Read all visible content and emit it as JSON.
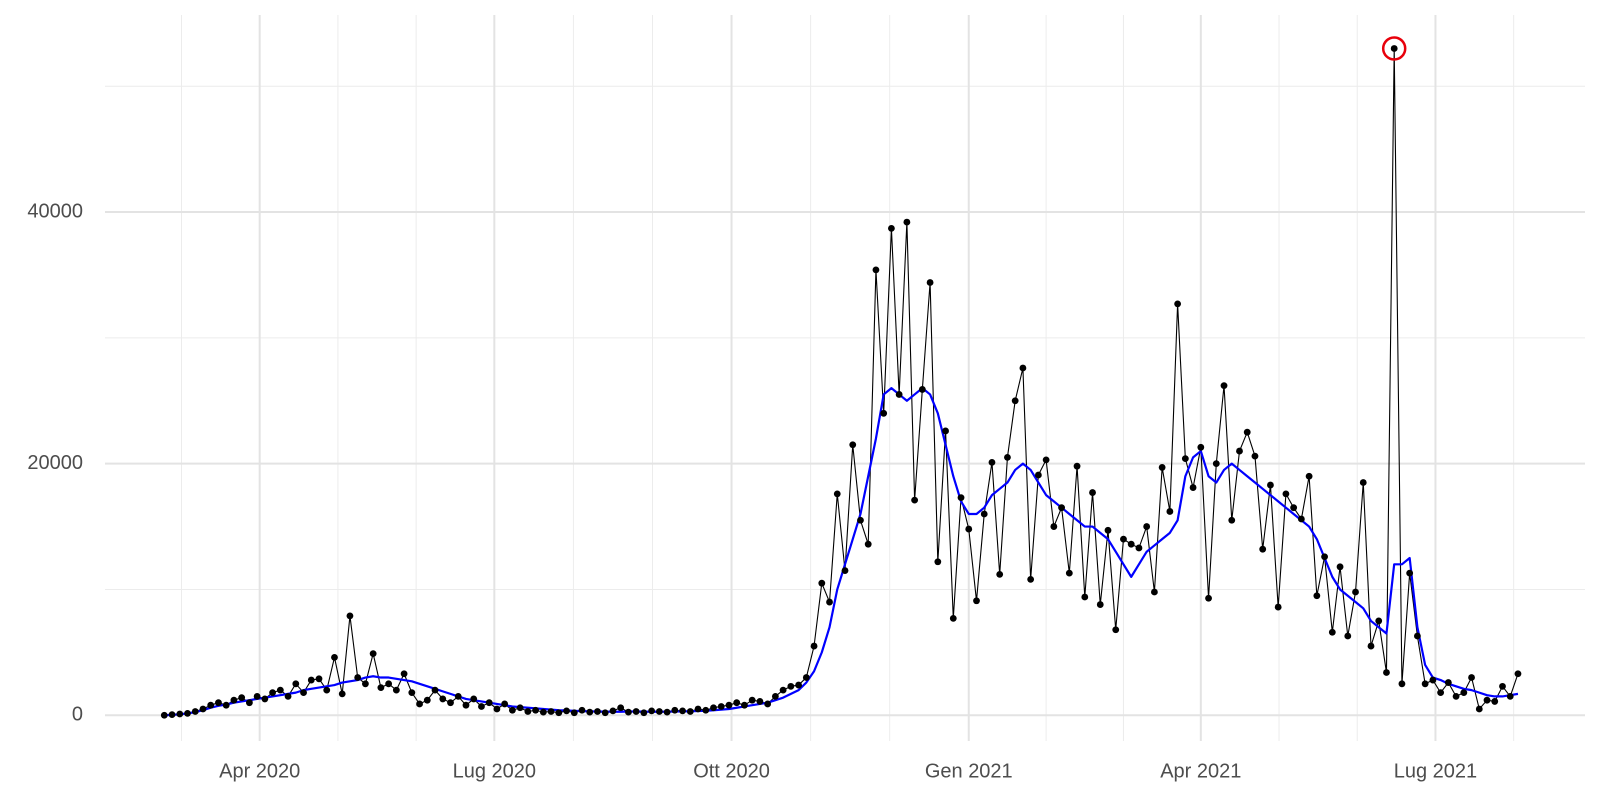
{
  "chart_data": {
    "type": "line",
    "x": [
      54,
      57,
      60,
      63,
      66,
      69,
      72,
      75,
      78,
      81,
      84,
      87,
      90,
      93,
      96,
      99,
      102,
      105,
      108,
      111,
      114,
      117,
      120,
      123,
      126,
      129,
      132,
      135,
      138,
      141,
      144,
      147,
      150,
      153,
      156,
      159,
      162,
      165,
      168,
      171,
      174,
      177,
      180,
      183,
      186,
      189,
      192,
      195,
      198,
      201,
      204,
      207,
      210,
      213,
      216,
      219,
      222,
      225,
      228,
      231,
      234,
      237,
      240,
      243,
      246,
      249,
      252,
      255,
      258,
      261,
      264,
      267,
      270,
      273,
      276,
      279,
      282,
      285,
      288,
      291,
      294,
      297,
      300,
      303,
      306,
      309,
      312,
      315,
      318,
      321,
      324,
      327,
      330,
      333,
      336,
      339,
      342,
      345,
      348,
      351,
      354,
      357,
      360,
      363,
      366,
      369,
      372,
      375,
      378,
      381,
      384,
      387,
      390,
      393,
      396,
      399,
      402,
      405,
      408,
      411,
      414,
      417,
      420,
      423,
      426,
      429,
      432,
      435,
      438,
      441,
      444,
      447,
      450,
      453,
      456,
      459,
      462,
      465,
      468,
      471,
      474,
      477,
      480,
      483,
      486,
      489,
      492,
      495,
      498,
      501,
      504,
      507,
      510,
      513,
      516,
      519,
      522,
      525,
      528,
      531,
      534,
      537,
      540,
      543,
      546,
      549,
      552,
      555,
      558,
      561,
      564,
      567,
      570,
      573,
      576,
      579
    ],
    "series": [
      {
        "color": "#000000",
        "markers": true,
        "values": [
          0,
          50,
          100,
          150,
          300,
          500,
          800,
          1000,
          800,
          1200,
          1400,
          1000,
          1500,
          1300,
          1800,
          2000,
          1500,
          2500,
          1800,
          2800,
          2900,
          2000,
          4600,
          1700,
          7900,
          3000,
          2500,
          4900,
          2200,
          2500,
          2000,
          3300,
          1800,
          900,
          1200,
          2000,
          1300,
          1000,
          1500,
          800,
          1300,
          700,
          1000,
          500,
          900,
          400,
          600,
          300,
          400,
          250,
          300,
          200,
          350,
          200,
          400,
          250,
          300,
          200,
          350,
          600,
          250,
          300,
          200,
          350,
          300,
          250,
          400,
          350,
          300,
          500,
          400,
          600,
          700,
          800,
          1000,
          800,
          1200,
          1100,
          900,
          1500,
          2000,
          2300,
          2400,
          3000,
          5500,
          10500,
          9000,
          17600,
          11500,
          21500,
          15500,
          13600,
          35400,
          24000,
          38700,
          25500,
          39200,
          17100,
          25900,
          34400,
          12200,
          22600,
          7700,
          17300,
          14800,
          9100,
          16000,
          20100,
          11200,
          20500,
          25000,
          27600,
          10800,
          19100,
          20300,
          15000,
          16500,
          11300,
          19800,
          9400,
          17700,
          8800,
          14700,
          6800,
          14000,
          13600,
          13300,
          15000,
          9800,
          19700,
          16200,
          32700,
          20400,
          18100,
          21300,
          9300,
          20000,
          26200,
          15500,
          21000,
          22500,
          20600,
          13200,
          18300,
          8600,
          17600,
          16500,
          15600,
          19000,
          9500,
          12600,
          6600,
          11800,
          6300,
          9800,
          18500,
          5500,
          7500,
          3400,
          53000,
          2500,
          11300,
          6300,
          2500,
          2800,
          1800,
          2600,
          1500,
          1800,
          3000,
          500,
          1200,
          1100,
          2300,
          1500,
          3300
        ]
      },
      {
        "color": "#0000ff",
        "markers": false,
        "values": [
          0,
          30,
          80,
          150,
          250,
          400,
          600,
          750,
          850,
          1000,
          1100,
          1200,
          1300,
          1400,
          1500,
          1600,
          1700,
          1800,
          2000,
          2100,
          2200,
          2300,
          2400,
          2600,
          2700,
          2800,
          3000,
          3100,
          3000,
          3000,
          2900,
          2800,
          2700,
          2500,
          2300,
          2100,
          1900,
          1700,
          1500,
          1300,
          1200,
          1100,
          1000,
          900,
          800,
          700,
          650,
          600,
          550,
          500,
          450,
          400,
          380,
          350,
          330,
          310,
          300,
          290,
          280,
          280,
          300,
          300,
          290,
          280,
          280,
          290,
          300,
          310,
          320,
          340,
          360,
          400,
          450,
          500,
          600,
          700,
          800,
          900,
          1000,
          1200,
          1400,
          1700,
          2000,
          2600,
          3500,
          5000,
          7000,
          10000,
          12000,
          14000,
          16000,
          19000,
          22000,
          25500,
          26000,
          25500,
          25000,
          25500,
          26000,
          25500,
          24000,
          21500,
          19000,
          17000,
          16000,
          16000,
          16500,
          17500,
          18000,
          18500,
          19500,
          20000,
          19500,
          18500,
          17500,
          17000,
          16500,
          16000,
          15500,
          15000,
          15000,
          14500,
          14000,
          13000,
          12000,
          11000,
          12000,
          13000,
          13500,
          14000,
          14500,
          15500,
          19000,
          20500,
          21000,
          19000,
          18500,
          19500,
          20000,
          19500,
          19000,
          18500,
          18000,
          17500,
          17000,
          16500,
          16000,
          15500,
          15000,
          14000,
          12500,
          11000,
          10000,
          9500,
          9000,
          8500,
          7500,
          7000,
          6500,
          12000,
          12000,
          12500,
          7000,
          4000,
          3000,
          2800,
          2500,
          2300,
          2100,
          2000,
          1800,
          1600,
          1500,
          1500,
          1600,
          1700
        ]
      }
    ],
    "highlight_color": "#e8000b",
    "xlim": [
      31,
      605
    ],
    "xticks": [
      {
        "value": 91,
        "label": "Apr 2020"
      },
      {
        "value": 182,
        "label": "Lug 2020"
      },
      {
        "value": 274,
        "label": "Ott 2020"
      },
      {
        "value": 366,
        "label": "Gen 2021"
      },
      {
        "value": 456,
        "label": "Apr 2021"
      },
      {
        "value": 547,
        "label": "Lug 2021"
      }
    ],
    "ylim": [
      -2760,
      55660
    ],
    "yticks": [
      0,
      20000,
      40000
    ],
    "grid": true
  }
}
